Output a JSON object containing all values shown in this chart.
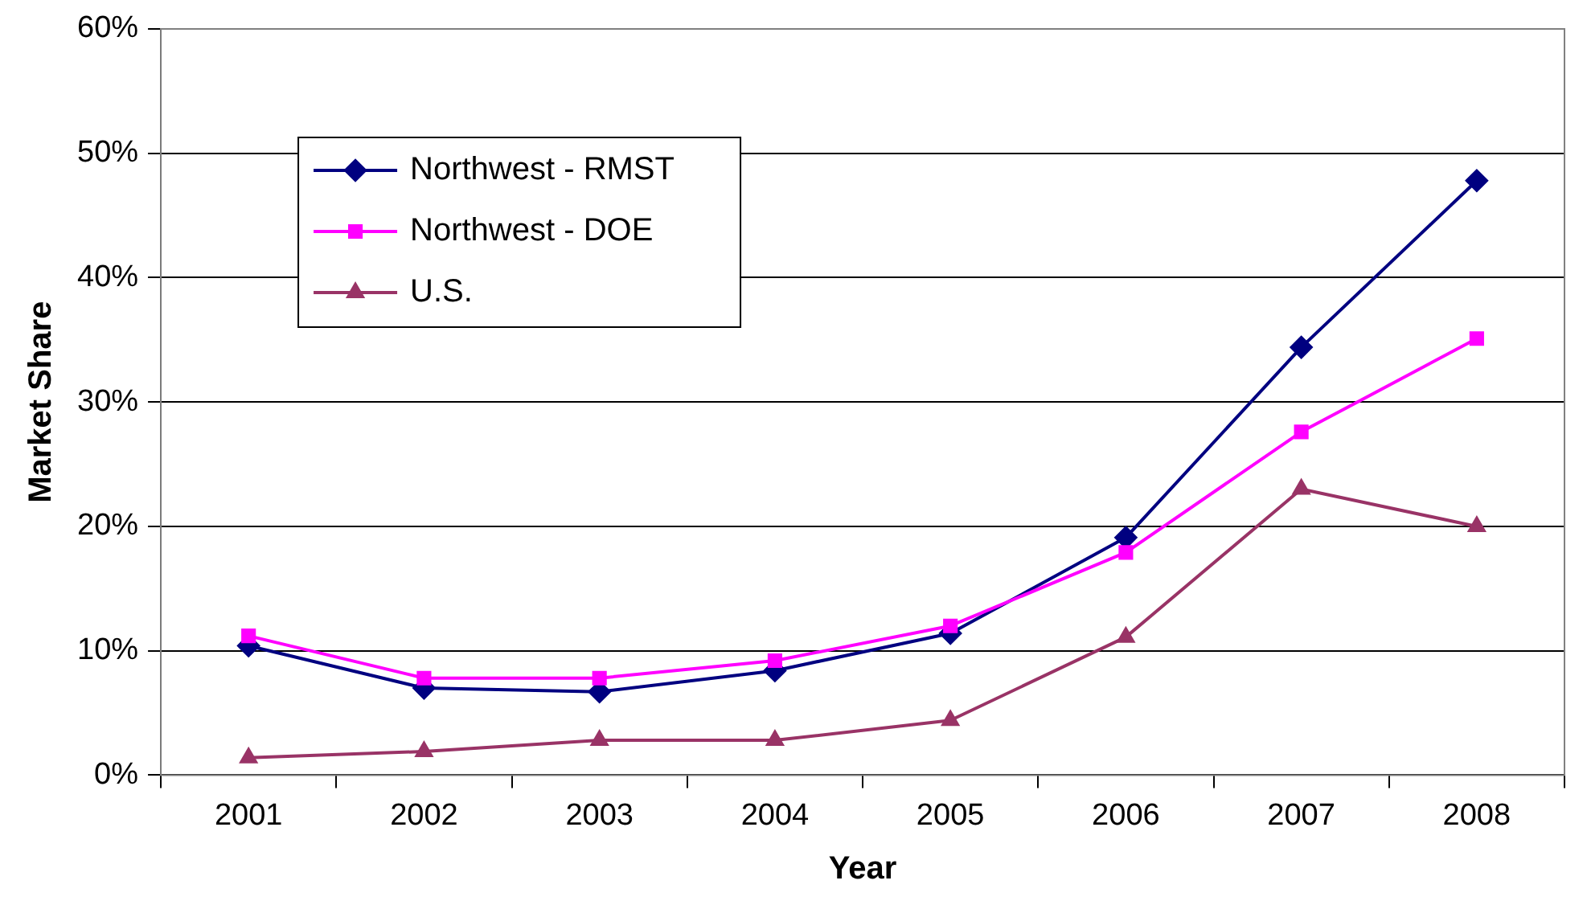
{
  "chart_data": {
    "type": "line",
    "xlabel": "Year",
    "ylabel": "Market Share",
    "categories": [
      "2001",
      "2002",
      "2003",
      "2004",
      "2005",
      "2006",
      "2007",
      "2008"
    ],
    "series": [
      {
        "name": "Northwest - RMST",
        "color": "#000080",
        "marker": "diamond",
        "values": [
          10.4,
          7.0,
          6.7,
          8.4,
          11.4,
          19.1,
          34.4,
          47.8
        ]
      },
      {
        "name": "Northwest - DOE",
        "color": "#ff00ff",
        "marker": "square",
        "values": [
          11.2,
          7.8,
          7.8,
          9.2,
          12.0,
          17.9,
          27.6,
          35.1
        ]
      },
      {
        "name": "U.S.",
        "color": "#993366",
        "marker": "triangle",
        "values": [
          1.4,
          1.9,
          2.8,
          2.8,
          4.4,
          11.1,
          23.0,
          20.0
        ]
      }
    ],
    "ylim": [
      0,
      60
    ],
    "yticks": [
      {
        "value": 0,
        "label": "0%"
      },
      {
        "value": 10,
        "label": "10%"
      },
      {
        "value": 20,
        "label": "20%"
      },
      {
        "value": 30,
        "label": "30%"
      },
      {
        "value": 40,
        "label": "40%"
      },
      {
        "value": 50,
        "label": "50%"
      },
      {
        "value": 60,
        "label": "60%"
      }
    ],
    "grid": "y",
    "legend": "top left",
    "line_style": "solid"
  }
}
